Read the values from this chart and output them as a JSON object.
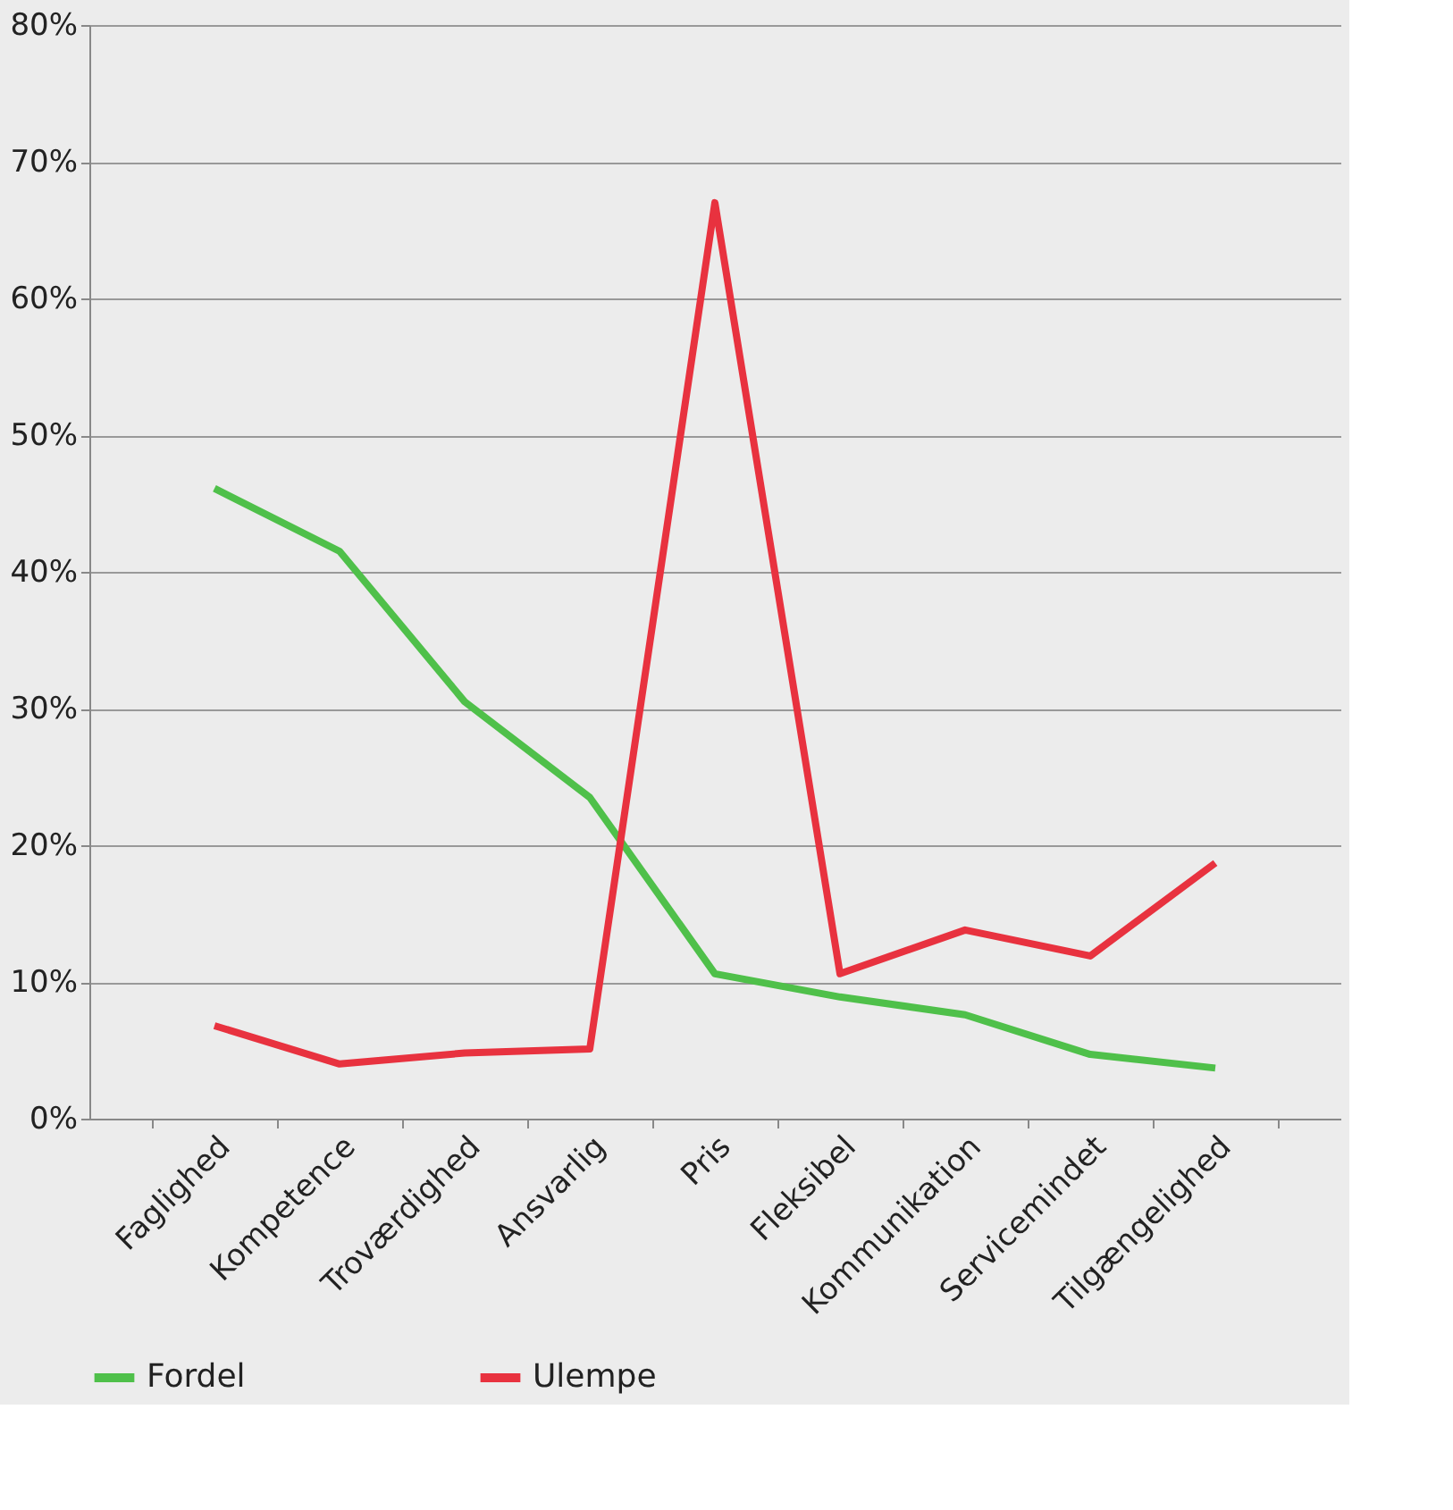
{
  "chart_data": {
    "type": "line",
    "categories": [
      "Faglighed",
      "Kompetence",
      "Troværdighed",
      "Ansvarlig",
      "Pris",
      "Fleksibel",
      "Kommunikation",
      "Servicemindet",
      "Tilgængelighed"
    ],
    "series": [
      {
        "name": "Fordel",
        "color": "#4fc04a",
        "values": [
          46.1,
          41.5,
          30.5,
          23.5,
          10.6,
          8.9,
          7.6,
          4.7,
          3.7
        ]
      },
      {
        "name": "Ulempe",
        "color": "#e8323f",
        "values": [
          6.8,
          4.0,
          4.8,
          5.1,
          67.0,
          10.6,
          13.8,
          11.9,
          18.7
        ]
      }
    ],
    "ylim": [
      0,
      80
    ],
    "yticks": [
      {
        "value": 0,
        "label": "0%"
      },
      {
        "value": 10,
        "label": "10%"
      },
      {
        "value": 20,
        "label": "20%"
      },
      {
        "value": 30,
        "label": "30%"
      },
      {
        "value": 40,
        "label": "40%"
      },
      {
        "value": 50,
        "label": "50%"
      },
      {
        "value": 60,
        "label": "60%"
      },
      {
        "value": 70,
        "label": "70%"
      },
      {
        "value": 80,
        "label": "80%"
      }
    ],
    "grid": "y",
    "legend": "bottom",
    "line_style": "solid"
  }
}
